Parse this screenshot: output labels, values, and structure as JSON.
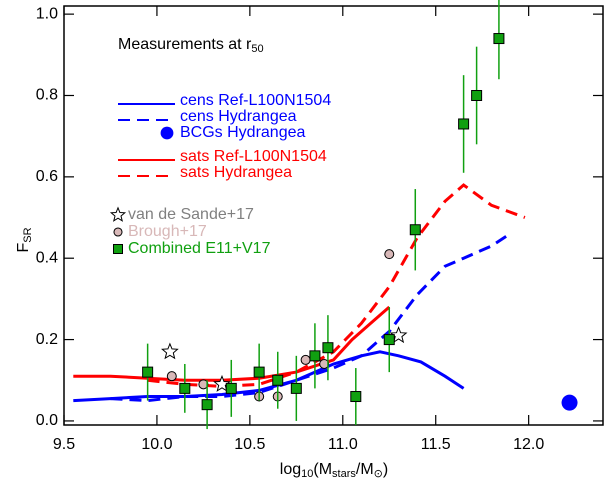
{
  "chart_data": {
    "type": "scatter-line",
    "annotation": [
      "Measurements at r",
      "50"
    ],
    "xlabel": [
      "log",
      "10",
      "(M",
      "stars",
      "/M",
      "⊙",
      ")"
    ],
    "ylabel": [
      "F",
      "SR"
    ],
    "xlim": [
      9.5,
      12.4
    ],
    "ylim": [
      -0.01,
      1.02
    ],
    "xticks": [
      {
        "value": 9.5,
        "label": "9.5"
      },
      {
        "value": 10.0,
        "label": "10.0"
      },
      {
        "value": 10.5,
        "label": "10.5"
      },
      {
        "value": 11.0,
        "label": "11.0"
      },
      {
        "value": 11.5,
        "label": "11.5"
      },
      {
        "value": 12.0,
        "label": "12.0"
      }
    ],
    "yticks": [
      {
        "value": 0,
        "label": "0.0"
      },
      {
        "value": 0.2,
        "label": "0.2"
      },
      {
        "value": 0.4,
        "label": "0.4"
      },
      {
        "value": 0.6,
        "label": "0.6"
      },
      {
        "value": 0.8,
        "label": "0.8"
      },
      {
        "value": 1.0,
        "label": "1.0"
      }
    ],
    "series": [
      {
        "name": "cens Ref-L100N1504",
        "color": "#0000ff",
        "line": "solid",
        "x": [
          9.55,
          9.75,
          9.95,
          10.15,
          10.35,
          10.55,
          10.75,
          10.95,
          11.1,
          11.2,
          11.3,
          11.42,
          11.55,
          11.65
        ],
        "values": [
          0.05,
          0.055,
          0.06,
          0.06,
          0.065,
          0.075,
          0.1,
          0.14,
          0.16,
          0.17,
          0.16,
          0.145,
          0.11,
          0.08
        ]
      },
      {
        "name": "cens Hydrangea",
        "color": "#0000ff",
        "line": "dashed",
        "x": [
          9.75,
          9.95,
          10.15,
          10.35,
          10.55,
          10.75,
          10.95,
          11.1,
          11.25,
          11.4,
          11.55,
          11.65,
          11.8,
          11.9
        ],
        "values": [
          0.055,
          0.05,
          0.06,
          0.06,
          0.07,
          0.1,
          0.13,
          0.16,
          0.22,
          0.31,
          0.38,
          0.4,
          0.43,
          0.46
        ]
      },
      {
        "name": "BCGs Hydrangea",
        "color": "#0000ff",
        "marker": "dot",
        "x": [
          12.22
        ],
        "values": [
          0.045
        ]
      },
      {
        "name": "sats Ref-L100N1504",
        "color": "#ff0000",
        "line": "solid",
        "x": [
          9.55,
          9.75,
          9.95,
          10.15,
          10.35,
          10.55,
          10.75,
          10.95,
          11.05,
          11.15,
          11.25
        ],
        "values": [
          0.11,
          0.11,
          0.105,
          0.1,
          0.1,
          0.105,
          0.12,
          0.15,
          0.2,
          0.24,
          0.28
        ]
      },
      {
        "name": "sats Hydrangea",
        "color": "#ff0000",
        "line": "dashed",
        "x": [
          9.95,
          10.15,
          10.35,
          10.55,
          10.75,
          10.95,
          11.1,
          11.25,
          11.4,
          11.55,
          11.65,
          11.8,
          11.98
        ],
        "values": [
          0.1,
          0.09,
          0.085,
          0.09,
          0.12,
          0.17,
          0.24,
          0.33,
          0.45,
          0.54,
          0.58,
          0.53,
          0.5
        ]
      },
      {
        "name": "van de Sande+17",
        "color": "#808080",
        "marker": "star",
        "x": [
          10.07,
          10.35,
          11.3
        ],
        "values": [
          0.17,
          0.09,
          0.21
        ]
      },
      {
        "name": "Brough+17",
        "color": "#d8b8b8",
        "marker": "circle",
        "x": [
          10.08,
          10.25,
          10.4,
          10.55,
          10.65,
          10.8,
          10.9,
          11.25
        ],
        "values": [
          0.11,
          0.09,
          0.08,
          0.06,
          0.06,
          0.15,
          0.14,
          0.41
        ]
      },
      {
        "name": "Combined E11+V17",
        "color": "#10a010",
        "marker": "square",
        "x": [
          9.95,
          10.15,
          10.27,
          10.4,
          10.55,
          10.65,
          10.75,
          10.85,
          10.92,
          11.07,
          11.25,
          11.39,
          11.65,
          11.72,
          11.84
        ],
        "values": [
          0.12,
          0.08,
          0.04,
          0.08,
          0.12,
          0.1,
          0.08,
          0.16,
          0.18,
          0.06,
          0.2,
          0.47,
          0.73,
          0.8,
          0.94
        ],
        "yerr": [
          0.07,
          0.06,
          0.06,
          0.07,
          0.07,
          0.07,
          0.08,
          0.08,
          0.08,
          0.07,
          0.08,
          0.1,
          0.12,
          0.12,
          0.1
        ]
      }
    ]
  }
}
